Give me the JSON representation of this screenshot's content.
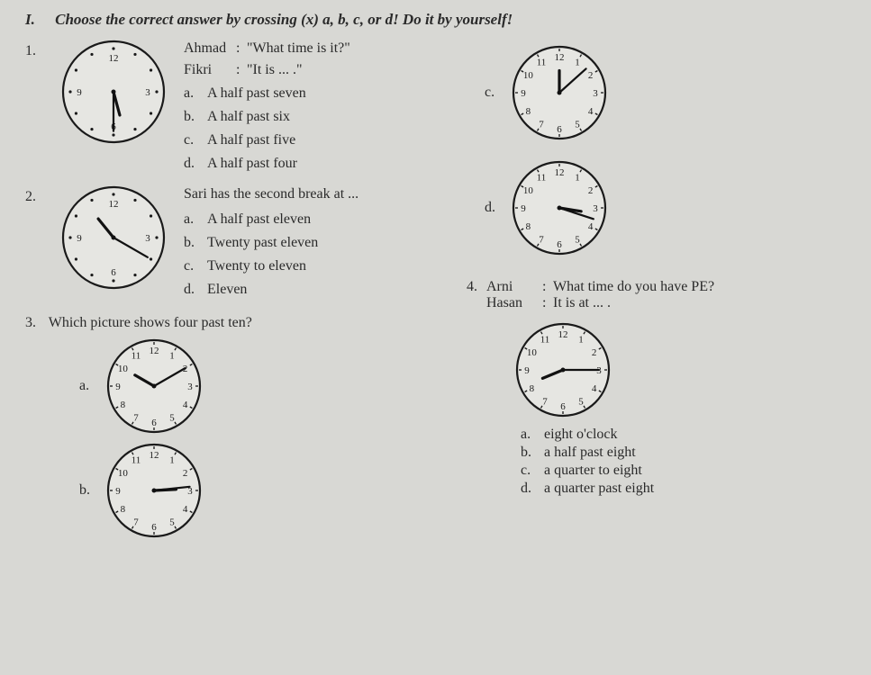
{
  "header": {
    "roman": "I.",
    "instruction": "Choose the correct answer by crossing (x) a, b, c, or d! Do it by yourself!"
  },
  "q1": {
    "num": "1.",
    "dialog_name1": "Ahmad",
    "dialog_text1": "\"What time is it?\"",
    "dialog_name2": "Fikri",
    "dialog_text2": "\"It is ... .\"",
    "opts": {
      "a": "A half past seven",
      "b": "A half past six",
      "c": "A half past five",
      "d": "A half past four"
    },
    "clock": {
      "hour": 5.5,
      "minute": 30,
      "size": 120,
      "show_numbers": false,
      "marked_hours": [
        12,
        3,
        6,
        9
      ]
    }
  },
  "q2": {
    "num": "2.",
    "text": "Sari has the second break at ...",
    "opts": {
      "a": "A half past eleven",
      "b": "Twenty past eleven",
      "c": "Twenty to eleven",
      "d": "Eleven"
    },
    "clock": {
      "hour": 10.7,
      "minute": 20,
      "size": 120,
      "show_numbers": false,
      "marked_hours": [
        12,
        3,
        6,
        9
      ]
    }
  },
  "q3": {
    "num": "3.",
    "text": "Which picture shows four past ten?",
    "opts": {
      "a": {
        "clock": {
          "hour": 10,
          "minute": 10,
          "size": 110,
          "show_numbers": true
        }
      },
      "b": {
        "clock": {
          "hour": 2.9,
          "minute": 14,
          "size": 110,
          "show_numbers": true
        }
      },
      "c": {
        "clock": {
          "hour": 12,
          "minute": 8,
          "size": 110,
          "show_numbers": true
        }
      },
      "d": {
        "clock": {
          "hour": 3.3,
          "minute": 18,
          "size": 110,
          "show_numbers": true
        }
      }
    }
  },
  "q4": {
    "num": "4.",
    "dialog_name1": "Arni",
    "dialog_text1": "What time do you have PE?",
    "dialog_name2": "Hasan",
    "dialog_text2": "It is at ... .",
    "clock": {
      "hour": 8.25,
      "minute": 15,
      "size": 110,
      "show_numbers": true
    },
    "opts": {
      "a": "eight o'clock",
      "b": "a half past eight",
      "c": "a quarter to eight",
      "d": "a quarter past eight"
    }
  },
  "style": {
    "clock_stroke": "#1a1a1a",
    "clock_fill": "#e6e6e2",
    "hand_color": "#111111",
    "number_font_size": 11
  }
}
